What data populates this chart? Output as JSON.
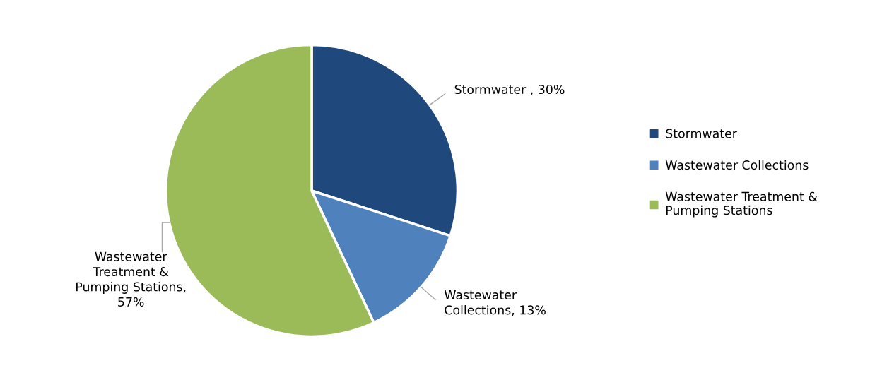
{
  "chart_data": {
    "type": "pie",
    "categories": [
      "Stormwater",
      "Wastewater Collections",
      "Wastewater Treatment &\nPumping Stations"
    ],
    "values": [
      30,
      13,
      57
    ],
    "colors": [
      "#1f497d",
      "#4f81bd",
      "#9bbb59"
    ],
    "value_labels": [
      "Stormwater , 30%",
      "Wastewater\nCollections, 13%",
      "Wastewater\nTreatment &\nPumping Stations,\n57%"
    ],
    "legend": "right"
  }
}
